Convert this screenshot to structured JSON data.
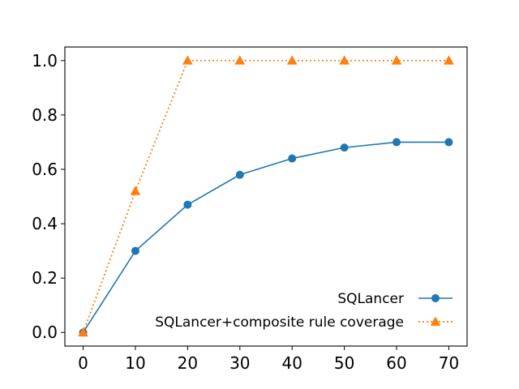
{
  "chart_data": {
    "type": "line",
    "title": "",
    "xlabel": "",
    "ylabel": "",
    "x": [
      0,
      10,
      20,
      30,
      40,
      50,
      60,
      70
    ],
    "xlim": [
      -3.5,
      73.5
    ],
    "ylim": [
      -0.05,
      1.05
    ],
    "xticks": [
      0,
      10,
      20,
      30,
      40,
      50,
      60,
      70
    ],
    "yticks": [
      0.0,
      0.2,
      0.4,
      0.6,
      0.8,
      1.0
    ],
    "xtick_labels": [
      "0",
      "10",
      "20",
      "30",
      "40",
      "50",
      "60",
      "70"
    ],
    "ytick_labels": [
      "0.0",
      "0.2",
      "0.4",
      "0.6",
      "0.8",
      "1.0"
    ],
    "grid": false,
    "legend_position": "lower-right",
    "series": [
      {
        "name": "SQLancer",
        "values": [
          0.0,
          0.3,
          0.47,
          0.58,
          0.64,
          0.68,
          0.7,
          0.7
        ],
        "color": "#1f77b4",
        "line_style": "solid",
        "marker": "circle"
      },
      {
        "name": "SQLancer+composite rule coverage",
        "values": [
          0.0,
          0.52,
          1.0,
          1.0,
          1.0,
          1.0,
          1.0,
          1.0
        ],
        "color": "#ff7f0e",
        "line_style": "dotted",
        "marker": "triangle"
      }
    ]
  }
}
